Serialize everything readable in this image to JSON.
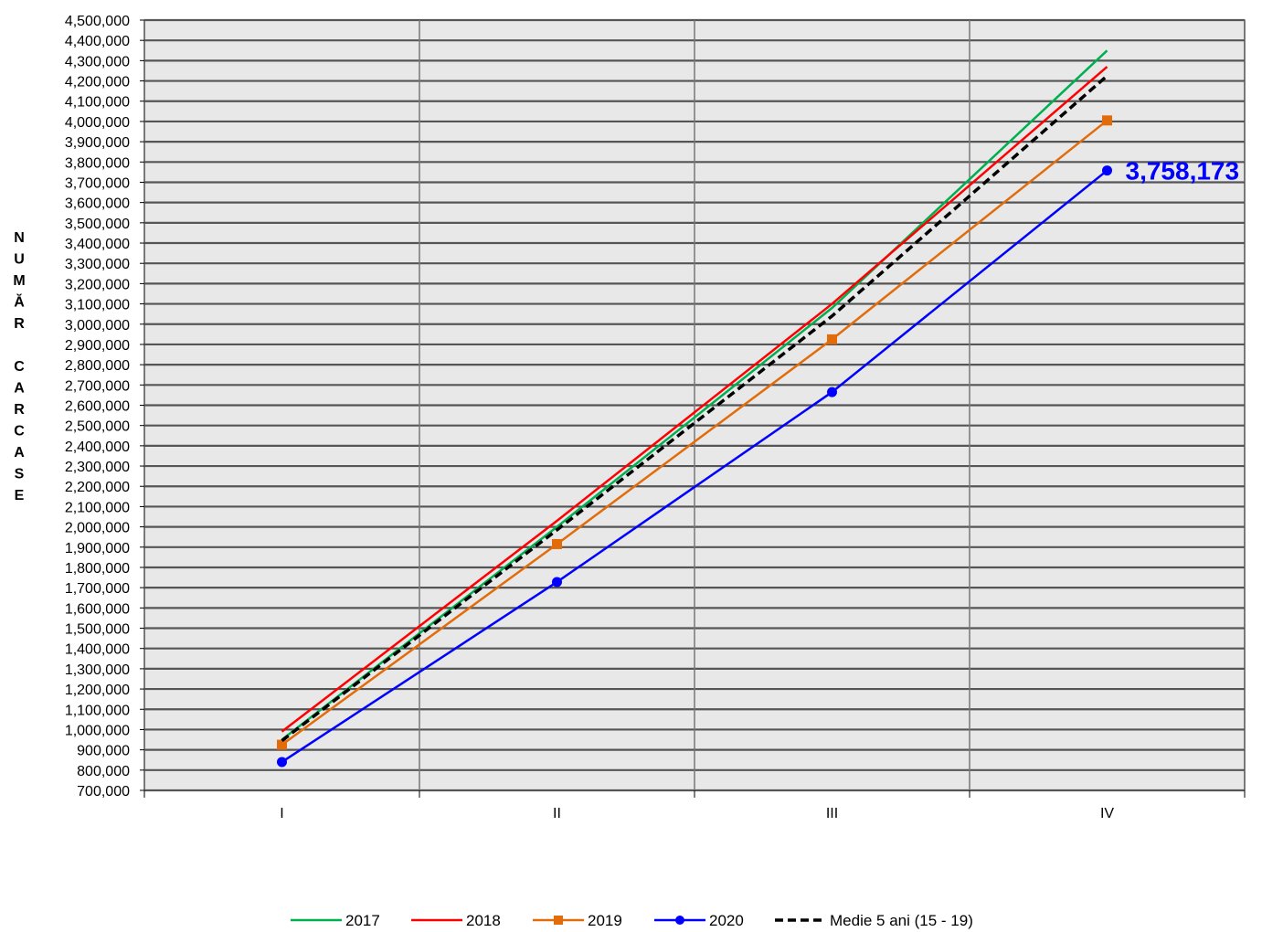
{
  "chart_data": {
    "type": "line",
    "title": "",
    "xlabel": "",
    "ylabel": "NUMĂR CARCASE",
    "categories": [
      "I",
      "II",
      "III",
      "IV"
    ],
    "ylim": [
      700000,
      4500000
    ],
    "ytick_step": 100000,
    "grid": true,
    "legend_position": "bottom",
    "series": [
      {
        "name": "2017",
        "color": "#00b050",
        "dash": false,
        "marker": "none",
        "values": [
          950000,
          2000000,
          3080000,
          4350000
        ]
      },
      {
        "name": "2018",
        "color": "#ff0000",
        "dash": false,
        "marker": "none",
        "values": [
          990000,
          2030000,
          3100000,
          4270000
        ]
      },
      {
        "name": "2019",
        "color": "#e36c0a",
        "dash": false,
        "marker": "square",
        "values": [
          925000,
          1915000,
          2925000,
          4005000
        ]
      },
      {
        "name": "2020",
        "color": "#0000ff",
        "dash": false,
        "marker": "circle",
        "values": [
          840000,
          1728000,
          2665000,
          3758173
        ]
      },
      {
        "name": "Medie 5 ani (15 - 19)",
        "color": "#000000",
        "dash": true,
        "marker": "none",
        "values": [
          945000,
          1985000,
          3040000,
          4225000
        ]
      }
    ],
    "annotations": [
      {
        "series": "2020",
        "index": 3,
        "text": "3,758,173",
        "color": "#0000ff"
      }
    ]
  }
}
